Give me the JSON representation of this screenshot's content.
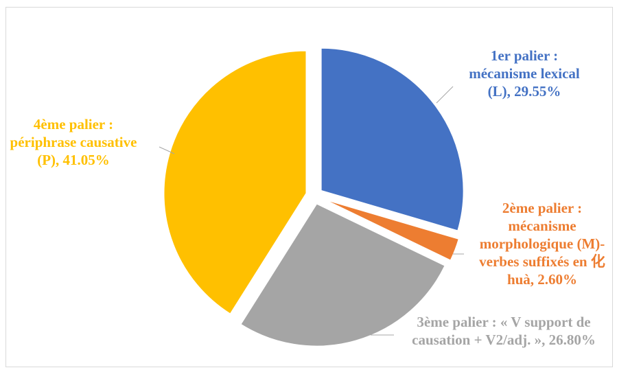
{
  "chart_data": {
    "type": "pie",
    "title": "",
    "slices": [
      {
        "label_lines": [
          "1er palier :",
          "mécanisme lexical",
          "(L), 29.55%"
        ],
        "value": 29.55,
        "color": "#4472C4"
      },
      {
        "label_lines": [
          "2ème palier :",
          "mécanisme",
          "morphologique (M)-",
          "verbes suffixés en 化",
          "huà, 2.60%"
        ],
        "value": 2.6,
        "color": "#ED7D31"
      },
      {
        "label_lines": [
          "3ème palier : « V support de",
          "causation + V2/adj. », 26.80%"
        ],
        "value": 26.8,
        "color": "#A5A5A5"
      },
      {
        "label_lines": [
          "4ème palier :",
          "périphrase causative",
          "(P), 41.05%"
        ],
        "value": 41.05,
        "color": "#FFC000"
      }
    ],
    "exploded": true,
    "legend": "none"
  }
}
